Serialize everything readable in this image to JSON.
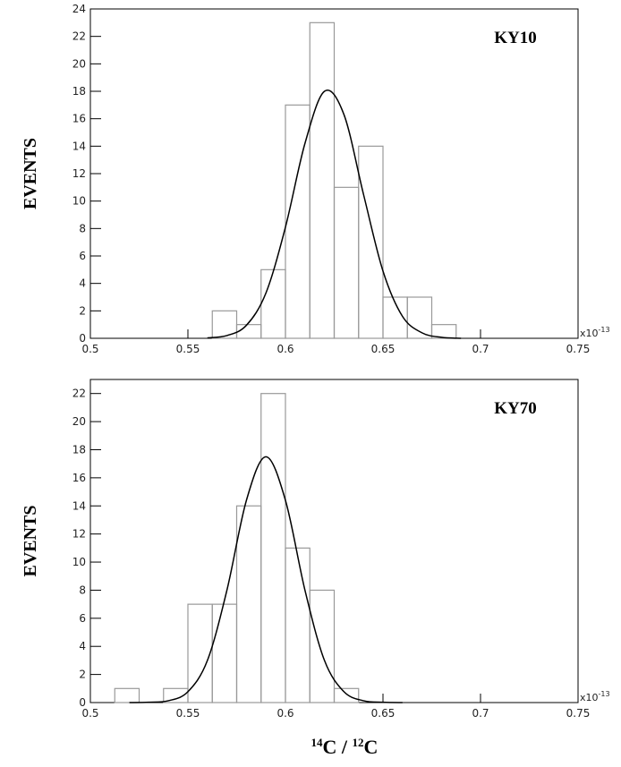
{
  "chart_data": [
    {
      "type": "histogram",
      "annotation": "KY10",
      "ylabel": "EVENTS",
      "x_multiplier": {
        "base": "x10",
        "exponent": "-13"
      },
      "bins": [
        0.5625,
        0.575,
        0.5875,
        0.6,
        0.6125,
        0.625,
        0.6375,
        0.65,
        0.6625,
        0.675,
        0.6875
      ],
      "counts": [
        2,
        1,
        5,
        17,
        23,
        11,
        14,
        3,
        3,
        1
      ],
      "color": "#999999",
      "fit": {
        "color": "#000000",
        "x": [
          0.56,
          0.57,
          0.58,
          0.59,
          0.6,
          0.61,
          0.62,
          0.63,
          0.64,
          0.65,
          0.66,
          0.67,
          0.68,
          0.69
        ],
        "values": [
          0.03,
          0.2,
          0.95,
          3.3,
          8.1,
          14.2,
          18.0,
          16.3,
          10.5,
          4.9,
          1.6,
          0.4,
          0.07,
          0
        ]
      },
      "xlim": [
        0.5,
        0.75
      ],
      "xticks": [
        0.5,
        0.55,
        0.6,
        0.65,
        0.7,
        0.75
      ],
      "ylim": [
        0,
        24
      ],
      "yticks": [
        0,
        2,
        4,
        6,
        8,
        10,
        12,
        14,
        16,
        18,
        20,
        22,
        24
      ]
    },
    {
      "type": "histogram",
      "annotation": "KY70",
      "ylabel": "EVENTS",
      "x_multiplier": {
        "base": "x10",
        "exponent": "-13"
      },
      "xlabel": [
        "14",
        "C / ",
        "12",
        "C"
      ],
      "bins": [
        0.5125,
        0.525,
        0.5375,
        0.55,
        0.5625,
        0.575,
        0.5875,
        0.6,
        0.6125,
        0.625,
        0.6375
      ],
      "counts": [
        1,
        0,
        1,
        7,
        7,
        14,
        22,
        11,
        8,
        1
      ],
      "color": "#999999",
      "fit": {
        "color": "#000000",
        "x": [
          0.52,
          0.53,
          0.54,
          0.55,
          0.56,
          0.57,
          0.58,
          0.59,
          0.6,
          0.61,
          0.62,
          0.63,
          0.64,
          0.65,
          0.66
        ],
        "values": [
          0,
          0.02,
          0.13,
          0.77,
          3.0,
          8.0,
          14.4,
          17.5,
          14.4,
          8.0,
          3.0,
          0.77,
          0.13,
          0.02,
          0
        ]
      },
      "xlim": [
        0.5,
        0.75
      ],
      "xticks": [
        0.5,
        0.55,
        0.6,
        0.65,
        0.7,
        0.75
      ],
      "ylim": [
        0,
        23
      ],
      "yticks": [
        0,
        2,
        4,
        6,
        8,
        10,
        12,
        14,
        16,
        18,
        20,
        22
      ]
    }
  ]
}
